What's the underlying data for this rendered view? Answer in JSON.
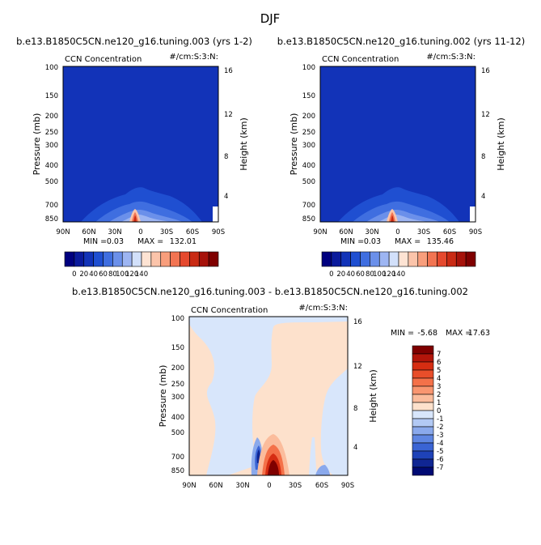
{
  "page": {
    "title": "DJF"
  },
  "chart_data": [
    {
      "type": "heatmap",
      "title": "b.e13.B1850C5CN.ne120_g16.tuning.003 (yrs 1-2)",
      "left_label": "CCN Concentration",
      "right_label": "#/cm:S:3:N:",
      "ylabel": "Pressure (mb)",
      "ylabel_right": "Height (km)",
      "x_ticks": [
        "90N",
        "60N",
        "30N",
        "0",
        "30S",
        "60S",
        "90S"
      ],
      "y_ticks": [
        "100",
        "150",
        "200",
        "250",
        "300",
        "400",
        "500",
        "700",
        "850"
      ],
      "y_ticks_right": [
        "16",
        "12",
        "8",
        "4"
      ],
      "stats": {
        "min": "0.03",
        "max": "132.01"
      },
      "colorbar": {
        "labels": [
          "0",
          "20",
          "40",
          "60",
          "80",
          "100",
          "120",
          "140"
        ],
        "colors": [
          "#00007f",
          "#0a1a9c",
          "#1233b8",
          "#1f4fd1",
          "#3f6ee0",
          "#6b90ea",
          "#9db5f2",
          "#d2e0fa",
          "#fde3d3",
          "#fbc4aa",
          "#f89e7c",
          "#f27452",
          "#e5492e",
          "#c92a14",
          "#a6120a",
          "#7f0000"
        ]
      }
    },
    {
      "type": "heatmap",
      "title": "b.e13.B1850C5CN.ne120_g16.tuning.002 (yrs 11-12)",
      "left_label": "CCN Concentration",
      "right_label": "#/cm:S:3:N:",
      "ylabel": "Pressure (mb)",
      "ylabel_right": "Height (km)",
      "x_ticks": [
        "90N",
        "60N",
        "30N",
        "0",
        "30S",
        "60S",
        "90S"
      ],
      "y_ticks": [
        "100",
        "150",
        "200",
        "250",
        "300",
        "400",
        "500",
        "700",
        "850"
      ],
      "y_ticks_right": [
        "16",
        "12",
        "8",
        "4"
      ],
      "stats": {
        "min": "0.03",
        "max": "135.46"
      },
      "colorbar": {
        "labels": [
          "0",
          "20",
          "40",
          "60",
          "80",
          "100",
          "120",
          "140"
        ],
        "colors": [
          "#00007f",
          "#0a1a9c",
          "#1233b8",
          "#1f4fd1",
          "#3f6ee0",
          "#6b90ea",
          "#9db5f2",
          "#d2e0fa",
          "#fde3d3",
          "#fbc4aa",
          "#f89e7c",
          "#f27452",
          "#e5492e",
          "#c92a14",
          "#a6120a",
          "#7f0000"
        ]
      }
    },
    {
      "type": "heatmap",
      "title": "b.e13.B1850C5CN.ne120_g16.tuning.003 - b.e13.B1850C5CN.ne120_g16.tuning.002",
      "left_label": "CCN Concentration",
      "right_label": "#/cm:S:3:N:",
      "ylabel": "Pressure (mb)",
      "ylabel_right": "Height (km)",
      "x_ticks": [
        "90N",
        "60N",
        "30N",
        "0",
        "30S",
        "60S",
        "90S"
      ],
      "y_ticks": [
        "100",
        "150",
        "200",
        "250",
        "300",
        "400",
        "500",
        "700",
        "850"
      ],
      "y_ticks_right": [
        "16",
        "12",
        "8",
        "4"
      ],
      "stats": {
        "min": "-5.68",
        "max": "17.63"
      },
      "colorbar": {
        "labels": [
          "7",
          "6",
          "5",
          "4",
          "3",
          "2",
          "1",
          "0",
          "-1",
          "-2",
          "-3",
          "-4",
          "-5",
          "-6",
          "-7"
        ],
        "colors": [
          "#7f0000",
          "#b2150a",
          "#d62d12",
          "#e84e2a",
          "#f47149",
          "#f99670",
          "#fbbc9c",
          "#fde1cc",
          "#d8e6fb",
          "#b2c9f4",
          "#8aa9ec",
          "#5f86e2",
          "#3a64d4",
          "#1e42b8",
          "#102693",
          "#000a73"
        ]
      }
    }
  ]
}
